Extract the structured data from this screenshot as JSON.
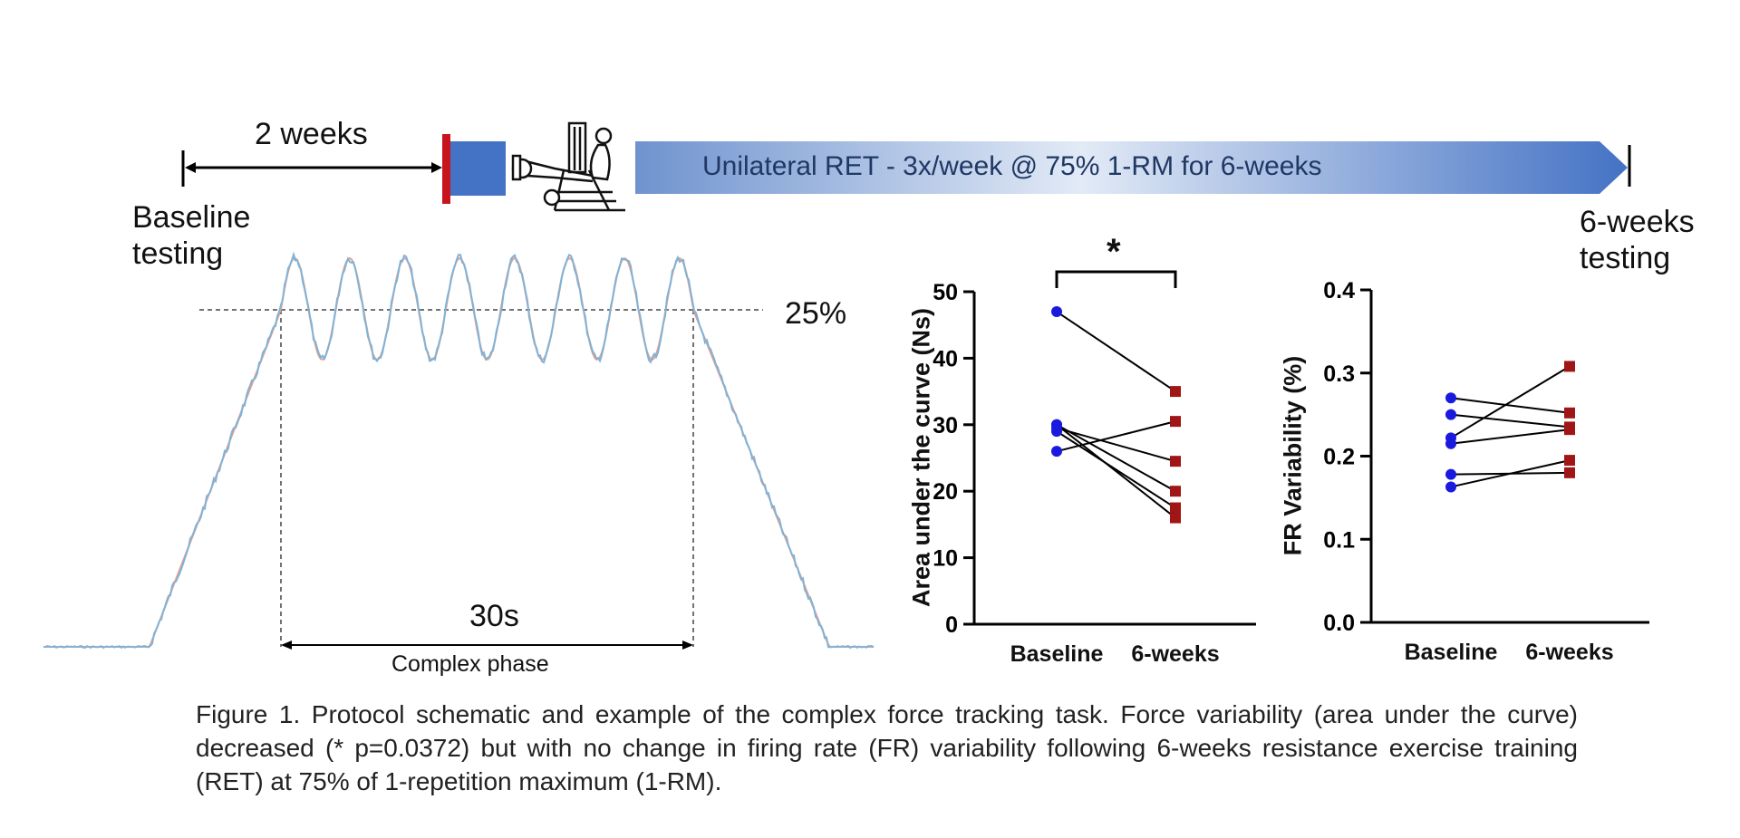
{
  "timeline": {
    "interval_label": "2 weeks",
    "baseline_label": "Baseline testing",
    "training_label": "Unilateral RET - 3x/week @ 75% 1-RM for 6-weeks",
    "final_label": "6-weeks testing",
    "icon": "leg-press-machine-icon"
  },
  "trace": {
    "threshold_label": "25%",
    "duration_label": "30s",
    "phase_label": "Complex phase",
    "colors": {
      "measured": "#7fb3d8",
      "target": "#e9a089"
    }
  },
  "chart_data": [
    {
      "type": "scatter",
      "subtype": "paired-points",
      "ylabel": "Area under the curve (Ns)",
      "xlabel": "",
      "categories": [
        "Baseline",
        "6-weeks"
      ],
      "ylim": [
        0,
        50
      ],
      "yticks": [
        0,
        10,
        20,
        30,
        40,
        50
      ],
      "significance": "*",
      "pairs": [
        [
          47,
          35
        ],
        [
          29.5,
          24.5
        ],
        [
          30,
          20
        ],
        [
          29,
          17.5
        ],
        [
          30,
          16
        ],
        [
          26,
          30.5
        ]
      ],
      "colors": {
        "baseline": "#1a1adf",
        "post": "#a01515"
      },
      "grid": false
    },
    {
      "type": "scatter",
      "subtype": "paired-points",
      "ylabel": "FR Variability (%)",
      "xlabel": "",
      "categories": [
        "Baseline",
        "6-weeks"
      ],
      "ylim": [
        0,
        0.4
      ],
      "yticks": [
        "0.0",
        "0.1",
        "0.2",
        "0.3",
        "0.4"
      ],
      "pairs": [
        [
          0.27,
          0.252
        ],
        [
          0.25,
          0.235
        ],
        [
          0.222,
          0.308
        ],
        [
          0.215,
          0.232
        ],
        [
          0.178,
          0.18
        ],
        [
          0.163,
          0.195
        ]
      ],
      "colors": {
        "baseline": "#1a1adf",
        "post": "#a01515"
      },
      "grid": false
    }
  ],
  "caption": "Figure 1. Protocol schematic and example of the complex force tracking task. Force variability (area under the curve) decreased (* p=0.0372) but with no change in firing rate (FR) variability following 6-weeks resistance exercise training (RET) at 75% of 1-repetition maximum (1-RM)."
}
